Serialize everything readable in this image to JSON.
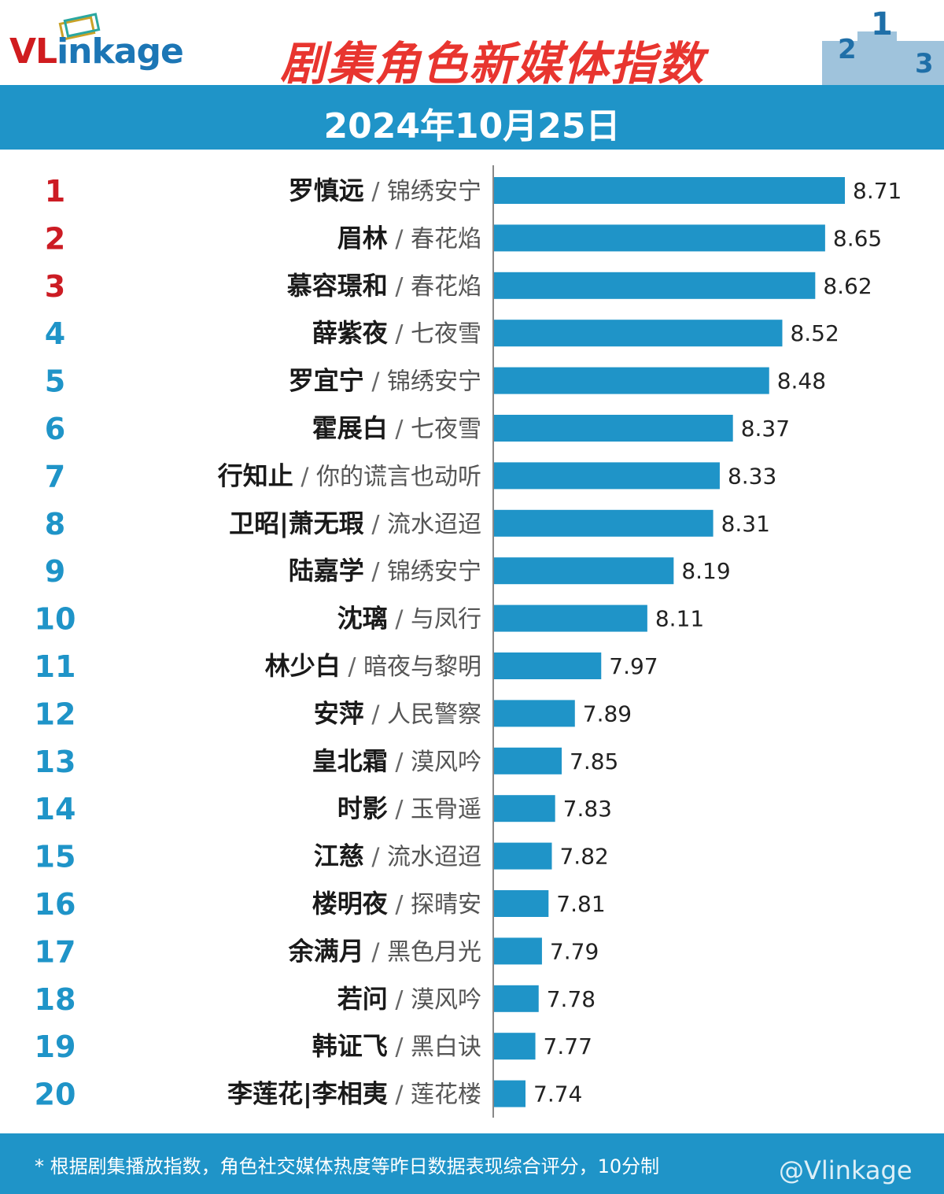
{
  "brand": {
    "logo_text": "VLinkage",
    "logo_red": "VL",
    "logo_blue": "inkage"
  },
  "header": {
    "title": "剧集角色新媒体指数",
    "date": "2024年10月25日"
  },
  "footer": {
    "note": "* 根据剧集播放指数，角色社交媒体热度等昨日数据表现综合评分，10分制",
    "watermark": "@Vlinkage"
  },
  "colors": {
    "bar": "#1f94c8",
    "rank_top": "#cc1c24",
    "rank_other": "#1f94c8",
    "title": "#e8352f"
  },
  "chart_data": {
    "type": "bar",
    "orientation": "horizontal",
    "categories": [
      "罗慎远 / 锦绣安宁",
      "眉林 / 春花焰",
      "慕容璟和 / 春花焰",
      "薛紫夜 / 七夜雪",
      "罗宜宁 / 锦绣安宁",
      "霍展白 / 七夜雪",
      "行知止 / 你的谎言也动听",
      "卫昭|萧无瑕 / 流水迢迢",
      "陆嘉学 / 锦绣安宁",
      "沈璃 / 与凤行",
      "林少白 / 暗夜与黎明",
      "安萍 / 人民警察",
      "皇北霜 / 漠风吟",
      "时影 / 玉骨遥",
      "江慈 / 流水迢迢",
      "楼明夜 / 探晴安",
      "余满月 / 黑色月光",
      "若问 / 漠风吟",
      "韩证飞 / 黑白诀",
      "李莲花|李相夷 / 莲花楼"
    ],
    "items": [
      {
        "rank": "1",
        "name": "罗慎远",
        "drama": "锦绣安宁",
        "value": 8.71
      },
      {
        "rank": "2",
        "name": "眉林",
        "drama": "春花焰",
        "value": 8.65
      },
      {
        "rank": "3",
        "name": "慕容璟和",
        "drama": "春花焰",
        "value": 8.62
      },
      {
        "rank": "4",
        "name": "薛紫夜",
        "drama": "七夜雪",
        "value": 8.52
      },
      {
        "rank": "5",
        "name": "罗宜宁",
        "drama": "锦绣安宁",
        "value": 8.48
      },
      {
        "rank": "6",
        "name": "霍展白",
        "drama": "七夜雪",
        "value": 8.37
      },
      {
        "rank": "7",
        "name": "行知止",
        "drama": "你的谎言也动听",
        "value": 8.33
      },
      {
        "rank": "8",
        "name": "卫昭|萧无瑕",
        "drama": "流水迢迢",
        "value": 8.31
      },
      {
        "rank": "9",
        "name": "陆嘉学",
        "drama": "锦绣安宁",
        "value": 8.19
      },
      {
        "rank": "10",
        "name": "沈璃",
        "drama": "与凤行",
        "value": 8.11
      },
      {
        "rank": "11",
        "name": "林少白",
        "drama": "暗夜与黎明",
        "value": 7.97
      },
      {
        "rank": "12",
        "name": "安萍",
        "drama": "人民警察",
        "value": 7.89
      },
      {
        "rank": "13",
        "name": "皇北霜",
        "drama": "漠风吟",
        "value": 7.85
      },
      {
        "rank": "14",
        "name": "时影",
        "drama": "玉骨遥",
        "value": 7.83
      },
      {
        "rank": "15",
        "name": "江慈",
        "drama": "流水迢迢",
        "value": 7.82
      },
      {
        "rank": "16",
        "name": "楼明夜",
        "drama": "探晴安",
        "value": 7.81
      },
      {
        "rank": "17",
        "name": "余满月",
        "drama": "黑色月光",
        "value": 7.79
      },
      {
        "rank": "18",
        "name": "若问",
        "drama": "漠风吟",
        "value": 7.78
      },
      {
        "rank": "19",
        "name": "韩证飞",
        "drama": "黑白诀",
        "value": 7.77
      },
      {
        "rank": "20",
        "name": "李莲花|李相夷",
        "drama": "莲花楼",
        "value": 7.74
      }
    ],
    "values": [
      8.71,
      8.65,
      8.62,
      8.52,
      8.48,
      8.37,
      8.33,
      8.31,
      8.19,
      8.11,
      7.97,
      7.89,
      7.85,
      7.83,
      7.82,
      7.81,
      7.79,
      7.78,
      7.77,
      7.74
    ],
    "title": "剧集角色新媒体指数",
    "xlabel": "",
    "ylabel": "",
    "grid": false,
    "legend": "none"
  }
}
